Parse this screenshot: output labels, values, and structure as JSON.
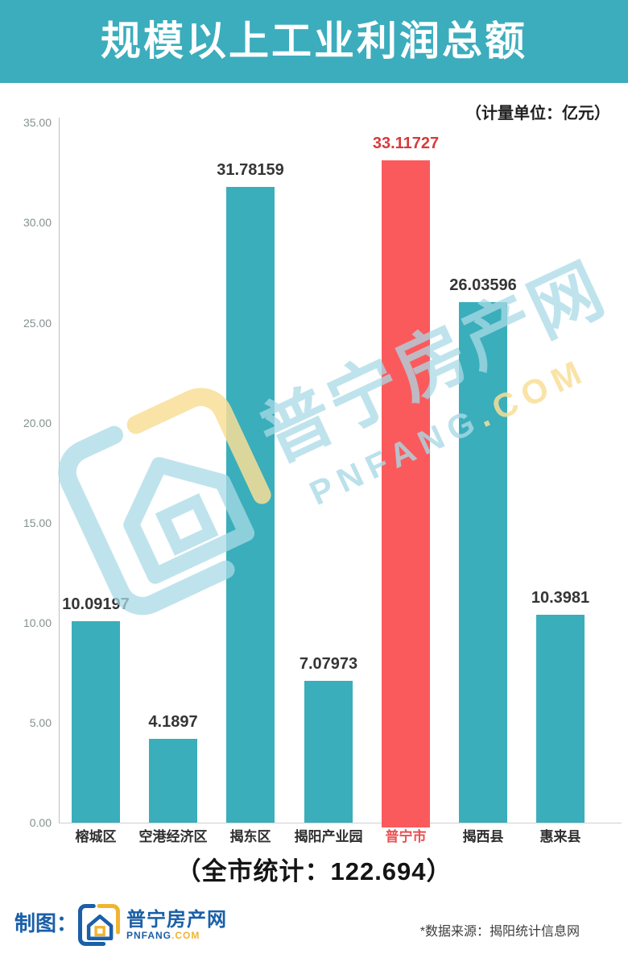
{
  "header": {
    "title": "规模以上工业利润总额",
    "unit_note": "（计量单位：亿元）"
  },
  "chart_data": {
    "type": "bar",
    "title": "规模以上工业利润总额",
    "unit": "亿元",
    "categories": [
      "榕城区",
      "空港经济区",
      "揭东区",
      "揭阳产业园",
      "普宁市",
      "揭西县",
      "惠来县"
    ],
    "values": [
      10.09197,
      4.1897,
      31.78159,
      7.07973,
      33.11727,
      26.03596,
      10.3981
    ],
    "value_labels": [
      "10.09197",
      "4.1897",
      "31.78159",
      "7.07973",
      "33.11727",
      "26.03596",
      "10.3981"
    ],
    "highlight_index": 4,
    "highlight_category": "普宁市",
    "xlabel": "",
    "ylabel": "",
    "ylim": [
      0,
      35
    ],
    "yticks": [
      "0.00",
      "5.00",
      "10.00",
      "15.00",
      "20.00",
      "25.00",
      "30.00",
      "35.00"
    ],
    "grid": false,
    "legend": "none",
    "bar_color": "#3aaebb",
    "highlight_color": "#fb5a5c",
    "value_label_color": "#353535",
    "highlight_value_color": "#d93a3c",
    "highlight_axis_label_color": "#e85052"
  },
  "summary": {
    "total_label": "（全市统计：122.694）",
    "total_value": "122.694"
  },
  "watermark": {
    "text": "普宁房产网",
    "domain_main": "PNFANG",
    "domain_suffix": ".COM"
  },
  "footer": {
    "credit_label": "制图：",
    "logo_text": "普宁房产网",
    "logo_domain_main": "PNFANG",
    "logo_domain_suffix": ".COM",
    "source_note": "*数据来源：揭阳统计信息网"
  },
  "colors": {
    "banner": "#3badbd",
    "bar_teal": "#3aaebb",
    "bar_red": "#fb5a5c",
    "footer_blue": "#1a5fa8",
    "footer_gold": "#f0b431"
  }
}
